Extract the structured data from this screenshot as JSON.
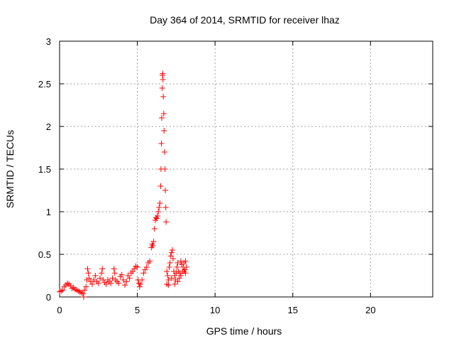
{
  "chart_data": {
    "type": "scatter",
    "title": "Day 364 of 2014, SRMTID for receiver lhaz",
    "xlabel": "GPS time / hours",
    "ylabel": "SRMTID / TECUs",
    "xlim": [
      0,
      24
    ],
    "ylim": [
      0,
      3
    ],
    "xticks": [
      0,
      5,
      10,
      15,
      20
    ],
    "yticks": [
      0,
      0.5,
      1,
      1.5,
      2,
      2.5,
      3
    ],
    "xtick_labels": [
      "0",
      "5",
      "10",
      "15",
      "20"
    ],
    "ytick_labels": [
      "0",
      "0.5",
      "1",
      "1.5",
      "2",
      "2.5",
      "3"
    ],
    "grid": true,
    "marker": "+",
    "color": "#ff0000",
    "series": [
      {
        "name": "SRMTID",
        "points": [
          [
            0.0,
            0.06
          ],
          [
            0.1,
            0.07
          ],
          [
            0.2,
            0.08
          ],
          [
            0.3,
            0.12
          ],
          [
            0.4,
            0.14
          ],
          [
            0.5,
            0.16
          ],
          [
            0.6,
            0.15
          ],
          [
            0.7,
            0.13
          ],
          [
            0.8,
            0.1
          ],
          [
            0.9,
            0.11
          ],
          [
            1.0,
            0.09
          ],
          [
            1.1,
            0.08
          ],
          [
            1.2,
            0.07
          ],
          [
            1.3,
            0.06
          ],
          [
            1.4,
            0.05
          ],
          [
            1.5,
            0.04
          ],
          [
            1.55,
            0.0
          ],
          [
            1.6,
            0.08
          ],
          [
            1.7,
            0.12
          ],
          [
            1.75,
            0.2
          ],
          [
            1.8,
            0.33
          ],
          [
            1.85,
            0.28
          ],
          [
            1.9,
            0.22
          ],
          [
            2.0,
            0.18
          ],
          [
            2.1,
            0.15
          ],
          [
            2.2,
            0.2
          ],
          [
            2.3,
            0.25
          ],
          [
            2.4,
            0.18
          ],
          [
            2.5,
            0.16
          ],
          [
            2.6,
            0.22
          ],
          [
            2.7,
            0.28
          ],
          [
            2.75,
            0.33
          ],
          [
            2.8,
            0.2
          ],
          [
            2.9,
            0.17
          ],
          [
            3.0,
            0.15
          ],
          [
            3.1,
            0.2
          ],
          [
            3.2,
            0.18
          ],
          [
            3.3,
            0.16
          ],
          [
            3.4,
            0.22
          ],
          [
            3.5,
            0.33
          ],
          [
            3.55,
            0.28
          ],
          [
            3.6,
            0.2
          ],
          [
            3.7,
            0.18
          ],
          [
            3.8,
            0.16
          ],
          [
            3.9,
            0.24
          ],
          [
            4.0,
            0.26
          ],
          [
            4.1,
            0.2
          ],
          [
            4.2,
            0.14
          ],
          [
            4.3,
            0.18
          ],
          [
            4.4,
            0.25
          ],
          [
            4.5,
            0.22
          ],
          [
            4.6,
            0.28
          ],
          [
            4.7,
            0.3
          ],
          [
            4.8,
            0.33
          ],
          [
            4.9,
            0.36
          ],
          [
            5.0,
            0.35
          ],
          [
            5.05,
            0.2
          ],
          [
            5.1,
            0.16
          ],
          [
            5.15,
            0.12
          ],
          [
            5.2,
            0.15
          ],
          [
            5.3,
            0.2
          ],
          [
            5.4,
            0.28
          ],
          [
            5.5,
            0.32
          ],
          [
            5.6,
            0.35
          ],
          [
            5.7,
            0.4
          ],
          [
            5.8,
            0.42
          ],
          [
            5.9,
            0.58
          ],
          [
            5.95,
            0.62
          ],
          [
            6.0,
            0.6
          ],
          [
            6.05,
            0.65
          ],
          [
            6.1,
            0.8
          ],
          [
            6.15,
            0.9
          ],
          [
            6.2,
            0.93
          ],
          [
            6.25,
            0.92
          ],
          [
            6.3,
            0.95
          ],
          [
            6.35,
            1.0
          ],
          [
            6.4,
            1.05
          ],
          [
            6.45,
            1.1
          ],
          [
            6.5,
            1.3
          ],
          [
            6.52,
            1.5
          ],
          [
            6.55,
            1.8
          ],
          [
            6.57,
            2.1
          ],
          [
            6.6,
            2.45
          ],
          [
            6.62,
            2.6
          ],
          [
            6.63,
            2.62
          ],
          [
            6.65,
            2.55
          ],
          [
            6.67,
            2.35
          ],
          [
            6.7,
            2.15
          ],
          [
            6.72,
            1.95
          ],
          [
            6.75,
            1.7
          ],
          [
            6.78,
            1.5
          ],
          [
            6.8,
            1.25
          ],
          [
            6.83,
            1.05
          ],
          [
            6.85,
            0.88
          ],
          [
            6.9,
            0.3
          ],
          [
            6.95,
            0.25
          ],
          [
            7.0,
            0.2
          ],
          [
            7.05,
            0.35
          ],
          [
            7.1,
            0.4
          ],
          [
            7.15,
            0.48
          ],
          [
            7.2,
            0.52
          ],
          [
            7.25,
            0.55
          ],
          [
            7.3,
            0.45
          ],
          [
            7.35,
            0.3
          ],
          [
            7.4,
            0.25
          ],
          [
            7.45,
            0.2
          ],
          [
            7.5,
            0.28
          ],
          [
            7.55,
            0.35
          ],
          [
            7.6,
            0.4
          ],
          [
            7.65,
            0.3
          ],
          [
            7.7,
            0.22
          ],
          [
            7.75,
            0.28
          ],
          [
            7.8,
            0.42
          ],
          [
            7.85,
            0.38
          ],
          [
            7.9,
            0.3
          ],
          [
            7.95,
            0.35
          ],
          [
            8.0,
            0.4
          ],
          [
            8.05,
            0.32
          ],
          [
            8.1,
            0.28
          ],
          [
            8.15,
            0.35
          ],
          [
            6.9,
            0.15
          ],
          [
            7.0,
            0.14
          ],
          [
            7.2,
            0.22
          ],
          [
            7.4,
            0.15
          ],
          [
            7.6,
            0.18
          ],
          [
            7.8,
            0.25
          ],
          [
            8.0,
            0.3
          ],
          [
            8.1,
            0.42
          ]
        ]
      }
    ]
  }
}
